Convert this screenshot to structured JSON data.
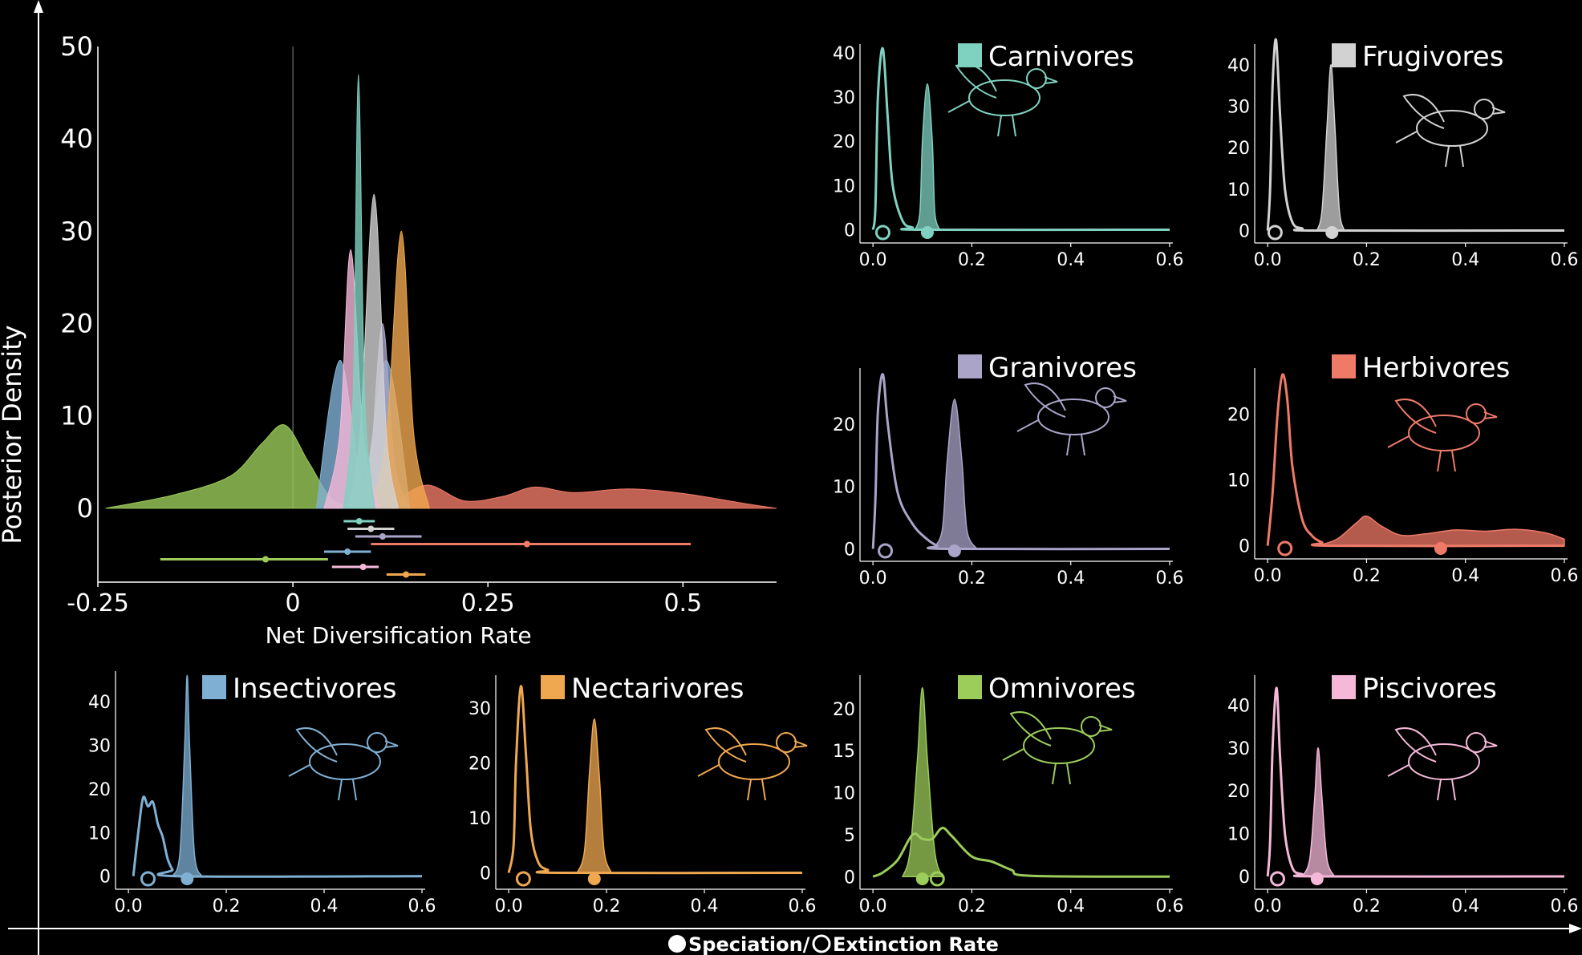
{
  "figure": {
    "y_axis_label": "Posterior Density",
    "x_axis_label_speciation": "Speciation/",
    "x_axis_label_extinction": "Extinction Rate"
  },
  "colors": {
    "Carnivores": "#7fd1c0",
    "Frugivores": "#d2d2d2",
    "Granivores": "#a9a4c8",
    "Herbivores": "#f07a68",
    "Insectivores": "#7fb0d4",
    "Nectarivores": "#f0a850",
    "Omnivores": "#9ccc5a",
    "Piscivores": "#f5b8d8"
  },
  "chart_data": [
    {
      "type": "area",
      "name": "net-diversification",
      "xlabel": "Net Diversification Rate",
      "ylabel": "",
      "xlim": [
        -0.25,
        0.62
      ],
      "ylim": [
        -8,
        50
      ],
      "xticks": [
        "-0.25",
        "0",
        "0.25",
        "0.5"
      ],
      "xtick_values": [
        -0.25,
        0,
        0.25,
        0.5
      ],
      "yticks": [
        "0",
        "10",
        "20",
        "30",
        "40",
        "50"
      ],
      "ytick_values": [
        0,
        10,
        20,
        30,
        40,
        50
      ],
      "series": [
        {
          "name": "Omnivores",
          "x": [
            -0.24,
            -0.15,
            -0.08,
            -0.04,
            -0.01,
            0.02,
            0.05,
            0.08,
            0.12
          ],
          "y": [
            0,
            1.5,
            3.5,
            7,
            9,
            5,
            1,
            0.3,
            0
          ]
        },
        {
          "name": "Herbivores",
          "x": [
            0.12,
            0.17,
            0.22,
            0.27,
            0.31,
            0.36,
            0.43,
            0.5,
            0.58,
            0.62
          ],
          "y": [
            0,
            2.5,
            0.8,
            1.3,
            2.3,
            1.7,
            2.1,
            1.6,
            0.5,
            0
          ]
        },
        {
          "name": "Insectivores",
          "x": [
            0.03,
            0.06,
            0.09,
            0.12,
            0.15
          ],
          "y": [
            0,
            16,
            3,
            16,
            0
          ]
        },
        {
          "name": "Granivores",
          "x": [
            0.09,
            0.1,
            0.115,
            0.13,
            0.15
          ],
          "y": [
            0,
            5,
            20,
            5,
            0
          ]
        },
        {
          "name": "Nectarivores",
          "x": [
            0.1,
            0.12,
            0.139,
            0.155,
            0.175
          ],
          "y": [
            0,
            8,
            30,
            8,
            0
          ]
        },
        {
          "name": "Frugivores",
          "x": [
            0.07,
            0.086,
            0.104,
            0.12,
            0.135
          ],
          "y": [
            0,
            8,
            34,
            8,
            0
          ]
        },
        {
          "name": "Piscivores",
          "x": [
            0.04,
            0.06,
            0.074,
            0.09,
            0.11
          ],
          "y": [
            0,
            8,
            28,
            8,
            0
          ]
        },
        {
          "name": "Carnivores",
          "x": [
            0.065,
            0.077,
            0.084,
            0.092,
            0.105
          ],
          "y": [
            0,
            12,
            47,
            12,
            0
          ]
        }
      ],
      "intervals": [
        {
          "name": "Carnivores",
          "low": 0.065,
          "mid": 0.085,
          "high": 0.105
        },
        {
          "name": "Frugivores",
          "low": 0.07,
          "mid": 0.1,
          "high": 0.13
        },
        {
          "name": "Granivores",
          "low": 0.08,
          "mid": 0.115,
          "high": 0.165
        },
        {
          "name": "Herbivores",
          "low": 0.1,
          "mid": 0.3,
          "high": 0.51
        },
        {
          "name": "Insectivores",
          "low": 0.04,
          "mid": 0.07,
          "high": 0.1
        },
        {
          "name": "Omnivores",
          "low": -0.17,
          "mid": -0.035,
          "high": 0.045
        },
        {
          "name": "Piscivores",
          "low": 0.05,
          "mid": 0.09,
          "high": 0.11
        },
        {
          "name": "Nectarivores",
          "low": 0.12,
          "mid": 0.145,
          "high": 0.17
        }
      ]
    },
    {
      "type": "area",
      "name": "Carnivores",
      "title": "Carnivores",
      "xlim": [
        -0.01,
        0.6
      ],
      "ylim": [
        -3,
        42
      ],
      "xticks": [
        "0.0",
        "0.2",
        "0.4",
        "0.6"
      ],
      "yticks": [
        "0",
        "10",
        "20",
        "30",
        "40"
      ],
      "ytick_values": [
        0,
        10,
        20,
        30,
        40
      ],
      "extinction": {
        "x": [
          0,
          0.005,
          0.01,
          0.02,
          0.03,
          0.04,
          0.06,
          0.08,
          0.1,
          0.6
        ],
        "y": [
          0,
          5,
          30,
          41,
          25,
          10,
          2,
          0.5,
          0,
          0
        ]
      },
      "speciation": {
        "x": [
          0.085,
          0.095,
          0.1,
          0.11,
          0.12,
          0.125,
          0.135
        ],
        "y": [
          0,
          4,
          20,
          33,
          20,
          4,
          0
        ]
      },
      "points": {
        "extinction": 0.02,
        "speciation": 0.11
      }
    },
    {
      "type": "area",
      "name": "Frugivores",
      "title": "Frugivores",
      "xlim": [
        -0.01,
        0.6
      ],
      "ylim": [
        -3,
        45
      ],
      "xticks": [
        "0.0",
        "0.2",
        "0.4",
        "0.6"
      ],
      "yticks": [
        "0",
        "10",
        "20",
        "30",
        "40"
      ],
      "ytick_values": [
        0,
        10,
        20,
        30,
        40
      ],
      "extinction": {
        "x": [
          0,
          0.005,
          0.01,
          0.017,
          0.025,
          0.035,
          0.05,
          0.07,
          0.1,
          0.6
        ],
        "y": [
          0,
          10,
          35,
          46,
          28,
          10,
          2,
          0.5,
          0,
          0
        ]
      },
      "speciation": {
        "x": [
          0.1,
          0.11,
          0.12,
          0.128,
          0.136,
          0.145,
          0.155
        ],
        "y": [
          0,
          5,
          25,
          40,
          25,
          5,
          0
        ]
      },
      "points": {
        "extinction": 0.015,
        "speciation": 0.13
      }
    },
    {
      "type": "area",
      "name": "Granivores",
      "title": "Granivores",
      "xlim": [
        -0.01,
        0.6
      ],
      "ylim": [
        -2,
        29
      ],
      "xticks": [
        "0.0",
        "0.2",
        "0.4",
        "0.6"
      ],
      "yticks": [
        "0",
        "10",
        "20"
      ],
      "ytick_values": [
        0,
        10,
        20
      ],
      "extinction": {
        "x": [
          0,
          0.005,
          0.01,
          0.02,
          0.03,
          0.05,
          0.08,
          0.11,
          0.13,
          0.15,
          0.6
        ],
        "y": [
          0,
          8,
          22,
          28,
          20,
          9,
          4,
          1.5,
          0.5,
          0,
          0
        ]
      },
      "speciation": {
        "x": [
          0.12,
          0.14,
          0.15,
          0.165,
          0.18,
          0.19,
          0.21
        ],
        "y": [
          0,
          3,
          14,
          24,
          14,
          3,
          0
        ]
      },
      "points": {
        "extinction": 0.025,
        "speciation": 0.165
      }
    },
    {
      "type": "area",
      "name": "Herbivores",
      "title": "Herbivores",
      "xlim": [
        -0.01,
        0.6
      ],
      "ylim": [
        -2,
        27
      ],
      "xticks": [
        "0.0",
        "0.2",
        "0.4",
        "0.6"
      ],
      "yticks": [
        "0",
        "10",
        "20"
      ],
      "ytick_values": [
        0,
        10,
        20
      ],
      "extinction": {
        "x": [
          0,
          0.01,
          0.02,
          0.03,
          0.04,
          0.05,
          0.07,
          0.09,
          0.11,
          0.13,
          0.6
        ],
        "y": [
          0,
          8,
          20,
          26,
          22,
          12,
          4,
          1.5,
          0.5,
          0,
          0
        ]
      },
      "speciation": {
        "x": [
          0.1,
          0.14,
          0.18,
          0.2,
          0.23,
          0.27,
          0.32,
          0.38,
          0.44,
          0.5,
          0.56,
          0.6
        ],
        "y": [
          0,
          1,
          3.5,
          4.5,
          3,
          1.6,
          1.8,
          2.4,
          2.2,
          2.5,
          2,
          1
        ]
      },
      "points": {
        "extinction": 0.035,
        "speciation": 0.35
      }
    },
    {
      "type": "area",
      "name": "Insectivores",
      "title": "Insectivores",
      "xlim": [
        -0.01,
        0.6
      ],
      "ylim": [
        -3,
        47
      ],
      "xticks": [
        "0.0",
        "0.2",
        "0.4",
        "0.6"
      ],
      "yticks": [
        "0",
        "10",
        "20",
        "30",
        "40"
      ],
      "ytick_values": [
        0,
        10,
        20,
        30,
        40
      ],
      "extinction": {
        "x": [
          0.01,
          0.02,
          0.03,
          0.04,
          0.05,
          0.06,
          0.07,
          0.08,
          0.09,
          0.1,
          0.6
        ],
        "y": [
          0,
          10,
          18,
          16,
          17,
          12,
          9,
          4,
          1.5,
          0,
          0
        ]
      },
      "speciation": {
        "x": [
          0.09,
          0.105,
          0.115,
          0.12,
          0.125,
          0.135,
          0.15
        ],
        "y": [
          0,
          5,
          30,
          46,
          30,
          5,
          0
        ]
      },
      "points": {
        "extinction": 0.04,
        "speciation": 0.12
      }
    },
    {
      "type": "area",
      "name": "Nectarivores",
      "title": "Nectarivores",
      "xlim": [
        -0.01,
        0.6
      ],
      "ylim": [
        -3,
        36
      ],
      "xticks": [
        "0.0",
        "0.2",
        "0.4",
        "0.6"
      ],
      "yticks": [
        "0",
        "10",
        "20",
        "30"
      ],
      "ytick_values": [
        0,
        10,
        20,
        30
      ],
      "extinction": {
        "x": [
          0,
          0.01,
          0.015,
          0.025,
          0.035,
          0.045,
          0.06,
          0.08,
          0.1,
          0.6
        ],
        "y": [
          0,
          5,
          20,
          34,
          22,
          8,
          2,
          0.5,
          0,
          0
        ]
      },
      "speciation": {
        "x": [
          0.14,
          0.155,
          0.165,
          0.175,
          0.185,
          0.195,
          0.21
        ],
        "y": [
          0,
          4,
          18,
          28,
          18,
          4,
          0
        ]
      },
      "points": {
        "extinction": 0.03,
        "speciation": 0.175
      }
    },
    {
      "type": "area",
      "name": "Omnivores",
      "title": "Omnivores",
      "xlim": [
        -0.01,
        0.6
      ],
      "ylim": [
        -1.5,
        24
      ],
      "xticks": [
        "0.0",
        "0.2",
        "0.4",
        "0.6"
      ],
      "yticks": [
        "0",
        "5",
        "10",
        "15",
        "20"
      ],
      "ytick_values": [
        0,
        5,
        10,
        15,
        20
      ],
      "extinction": {
        "x": [
          0,
          0.02,
          0.05,
          0.08,
          0.1,
          0.12,
          0.14,
          0.16,
          0.2,
          0.24,
          0.28,
          0.32,
          0.6
        ],
        "y": [
          0,
          0.5,
          2,
          5,
          4.5,
          4.5,
          5.8,
          4.8,
          2.4,
          1.8,
          0.8,
          0.1,
          0
        ]
      },
      "speciation": {
        "x": [
          0.06,
          0.075,
          0.09,
          0.1,
          0.11,
          0.125,
          0.14
        ],
        "y": [
          0,
          3,
          14,
          22.5,
          14,
          3,
          0
        ]
      },
      "points": {
        "extinction": 0.13,
        "speciation": 0.1
      }
    },
    {
      "type": "area",
      "name": "Piscivores",
      "title": "Piscivores",
      "xlim": [
        -0.01,
        0.6
      ],
      "ylim": [
        -3,
        47
      ],
      "xticks": [
        "0.0",
        "0.2",
        "0.4",
        "0.6"
      ],
      "yticks": [
        "0",
        "10",
        "20",
        "30",
        "40"
      ],
      "ytick_values": [
        0,
        10,
        20,
        30,
        40
      ],
      "extinction": {
        "x": [
          0,
          0.005,
          0.01,
          0.018,
          0.025,
          0.035,
          0.05,
          0.07,
          0.1,
          0.6
        ],
        "y": [
          0,
          8,
          30,
          44,
          28,
          10,
          2,
          0.5,
          0,
          0
        ]
      },
      "speciation": {
        "x": [
          0.07,
          0.085,
          0.095,
          0.102,
          0.11,
          0.12,
          0.135
        ],
        "y": [
          0,
          4,
          18,
          30,
          18,
          4,
          0
        ]
      },
      "points": {
        "extinction": 0.02,
        "speciation": 0.1
      }
    }
  ]
}
